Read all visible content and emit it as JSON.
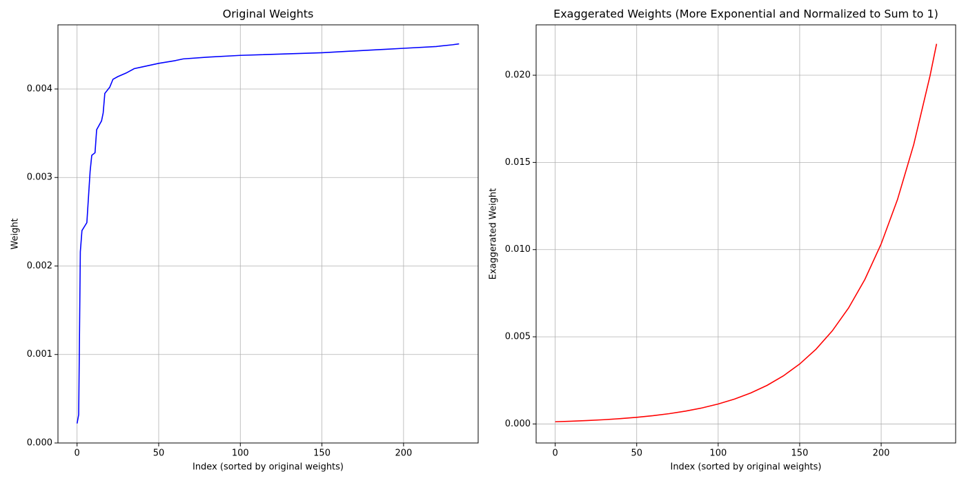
{
  "chart_data": [
    {
      "type": "line",
      "title": "Original Weights",
      "x_label": "Index (sorted by original weights)",
      "y_label": "Weight",
      "x": [
        0,
        1,
        2,
        3,
        5,
        6,
        8,
        9,
        11,
        12,
        15,
        16,
        17,
        20,
        22,
        25,
        30,
        35,
        40,
        50,
        60,
        65,
        80,
        100,
        150,
        180,
        190,
        200,
        220,
        230,
        234
      ],
      "series": [
        {
          "color": "#0000ff",
          "values": [
            0.00022,
            0.00032,
            0.00216,
            0.0024,
            0.00246,
            0.00249,
            0.00307,
            0.00325,
            0.00328,
            0.00354,
            0.00364,
            0.00373,
            0.00395,
            0.00402,
            0.00411,
            0.00414,
            0.00418,
            0.00423,
            0.00425,
            0.00429,
            0.00432,
            0.00434,
            0.00436,
            0.00438,
            0.00441,
            0.00444,
            0.00445,
            0.00446,
            0.00448,
            0.0045,
            0.00451
          ]
        }
      ],
      "xlim": [
        -11.7,
        245.7
      ],
      "ylim": [
        0,
        0.004725
      ],
      "xticks": [
        0,
        50,
        100,
        150,
        200
      ],
      "yticks": [
        {
          "value": 0,
          "label": "0.000"
        },
        {
          "value": 0.001,
          "label": "0.001"
        },
        {
          "value": 0.002,
          "label": "0.002"
        },
        {
          "value": 0.003,
          "label": "0.003"
        },
        {
          "value": 0.004,
          "label": "0.004"
        }
      ],
      "grid": true
    },
    {
      "type": "line",
      "title": "Exaggerated Weights (More Exponential and Normalized to Sum to 1)",
      "x_label": "Index (sorted by original weights)",
      "y_label": "Exaggerated Weight",
      "x": [
        0,
        10,
        20,
        30,
        40,
        50,
        60,
        70,
        80,
        90,
        100,
        110,
        120,
        130,
        140,
        150,
        160,
        170,
        180,
        190,
        200,
        210,
        220,
        230,
        234
      ],
      "series": [
        {
          "color": "#ff0000",
          "values": [
            0.000127,
            0.000158,
            0.000197,
            0.000246,
            0.000306,
            0.000381,
            0.000475,
            0.000592,
            0.000738,
            0.000919,
            0.001145,
            0.001427,
            0.001778,
            0.002215,
            0.00276,
            0.003439,
            0.004285,
            0.005339,
            0.006652,
            0.008288,
            0.010327,
            0.012867,
            0.016032,
            0.019976,
            0.0218
          ]
        }
      ],
      "xlim": [
        -11.7,
        245.7
      ],
      "ylim": [
        -0.00109,
        0.02289
      ],
      "xticks": [
        0,
        50,
        100,
        150,
        200
      ],
      "yticks": [
        {
          "value": 0,
          "label": "0.000"
        },
        {
          "value": 0.005,
          "label": "0.005"
        },
        {
          "value": 0.01,
          "label": "0.010"
        },
        {
          "value": 0.015,
          "label": "0.015"
        },
        {
          "value": 0.02,
          "label": "0.020"
        }
      ],
      "grid": true
    }
  ]
}
